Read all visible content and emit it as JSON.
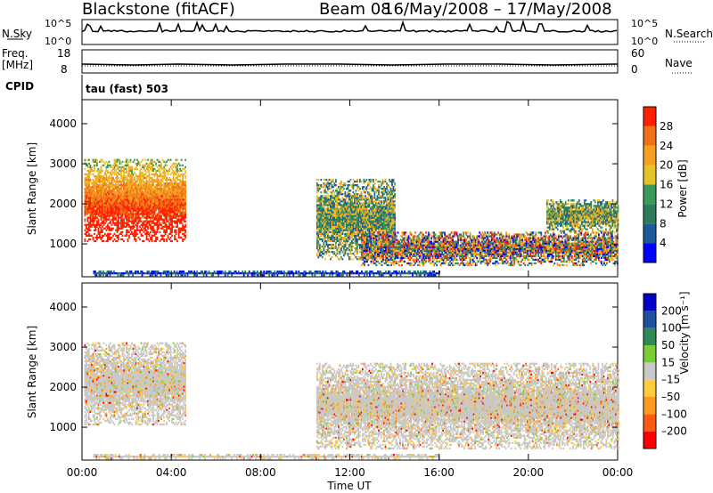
{
  "header": {
    "station": "Blackstone (fitACF)",
    "beam": "Beam 08",
    "date_range": "16/May/2008 – 17/May/2008"
  },
  "top_panels": {
    "nsky_label": "N.Sky",
    "nsky_ticks": [
      "10^5",
      "10^0"
    ],
    "nsearch_label": "N.Search",
    "nsearch_ticks": [
      "10^5",
      "10^0"
    ],
    "freq_label": "Freq.",
    "freq_unit": "[MHz]",
    "freq_ticks": [
      "18",
      "8"
    ],
    "nave_label": "Nave",
    "nave_ticks": [
      "60",
      "0"
    ],
    "cpid_label": "CPID",
    "cpid_value": "tau (fast) 503"
  },
  "colors": {
    "power_scale": [
      "#0000ff",
      "#1c5a9c",
      "#2e7d5a",
      "#3a9a5a",
      "#e6c229",
      "#f4a020",
      "#f07018",
      "#ff2000"
    ],
    "velocity_scale": [
      "#ff0000",
      "#ff5a14",
      "#ff9a1e",
      "#ffcd3c",
      "#c8c8c8",
      "#7acd32",
      "#2e8b57",
      "#1e50a0",
      "#0000c8"
    ]
  },
  "chart_data": [
    {
      "type": "heatmap",
      "title": "Power",
      "xlabel": "",
      "ylabel": "Slant Range [km]",
      "ylim": [
        180,
        4600
      ],
      "yticks": [
        1000,
        2000,
        3000,
        4000
      ],
      "xlim": [
        0,
        24
      ],
      "colorbar": {
        "label": "Power [dB]",
        "range": [
          0,
          32
        ],
        "ticks": [
          "4",
          "8",
          "12",
          "16",
          "20",
          "24",
          "28"
        ]
      },
      "regions": [
        {
          "t_start": 0.1,
          "t_end": 4.6,
          "r_low": 1050,
          "r_high": 3100,
          "level": "high"
        },
        {
          "t_start": 10.5,
          "t_end": 14.0,
          "r_low": 600,
          "r_high": 2600,
          "level": "medium"
        },
        {
          "t_start": 12.5,
          "t_end": 24.0,
          "r_low": 450,
          "r_high": 1300,
          "level": "mixed"
        },
        {
          "t_start": 20.8,
          "t_end": 24.0,
          "r_low": 1300,
          "r_high": 2100,
          "level": "medium"
        },
        {
          "t_start": 0.5,
          "t_end": 16.0,
          "r_low": 200,
          "r_high": 300,
          "level": "low"
        }
      ]
    },
    {
      "type": "heatmap",
      "title": "Velocity",
      "xlabel": "Time UT",
      "ylabel": "Slant Range [km]",
      "ylim": [
        180,
        4600
      ],
      "yticks": [
        1000,
        2000,
        3000,
        4000
      ],
      "xlim": [
        0,
        24
      ],
      "xticks": [
        "00:00",
        "04:00",
        "08:00",
        "12:00",
        "16:00",
        "20:00",
        "00:00"
      ],
      "colorbar": {
        "label": "Velocity [m s⁻¹]",
        "ticks": [
          "200",
          "100",
          "50",
          "15",
          "–15",
          "–50",
          "–100",
          "–200"
        ]
      },
      "regions": [
        {
          "t_start": 0.1,
          "t_end": 4.6,
          "r_low": 1050,
          "r_high": 3100,
          "level": "near-zero"
        },
        {
          "t_start": 10.5,
          "t_end": 24.0,
          "r_low": 450,
          "r_high": 2600,
          "level": "near-zero"
        },
        {
          "t_start": 0.5,
          "t_end": 16.0,
          "r_low": 200,
          "r_high": 300,
          "level": "near-zero"
        }
      ]
    }
  ]
}
